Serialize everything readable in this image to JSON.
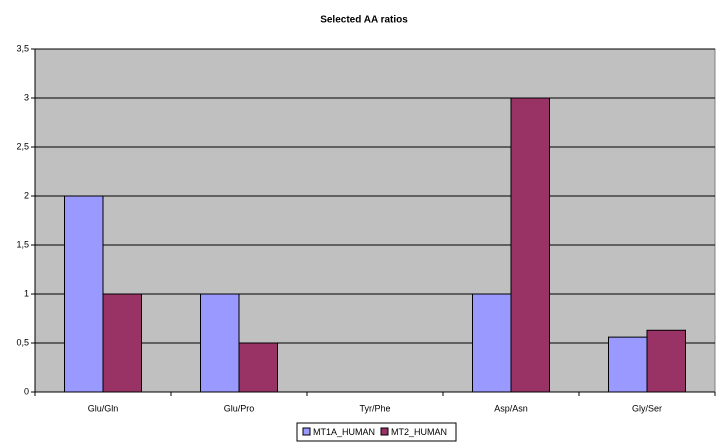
{
  "chart_data": {
    "type": "bar",
    "title": "Selected AA ratios",
    "categories": [
      "Glu/Gln",
      "Glu/Pro",
      "Tyr/Phe",
      "Asp/Asn",
      "Gly/Ser"
    ],
    "series": [
      {
        "name": "MT1A_HUMAN",
        "color": "#9999ff",
        "values": [
          2,
          1,
          0,
          1,
          0.56
        ]
      },
      {
        "name": "MT2_HUMAN",
        "color": "#993366",
        "values": [
          1,
          0.5,
          0,
          3,
          0.63
        ]
      }
    ],
    "ylim": [
      0,
      3.5
    ],
    "yticks": [
      0,
      {
        "value": 0.5,
        "label": "0,5"
      },
      1,
      {
        "value": 1.5,
        "label": "1,5"
      },
      2,
      {
        "value": 2.5,
        "label": "2,5"
      },
      3,
      {
        "value": 3.5,
        "label": "3,5"
      }
    ],
    "grid": true,
    "legend": "bottom"
  }
}
